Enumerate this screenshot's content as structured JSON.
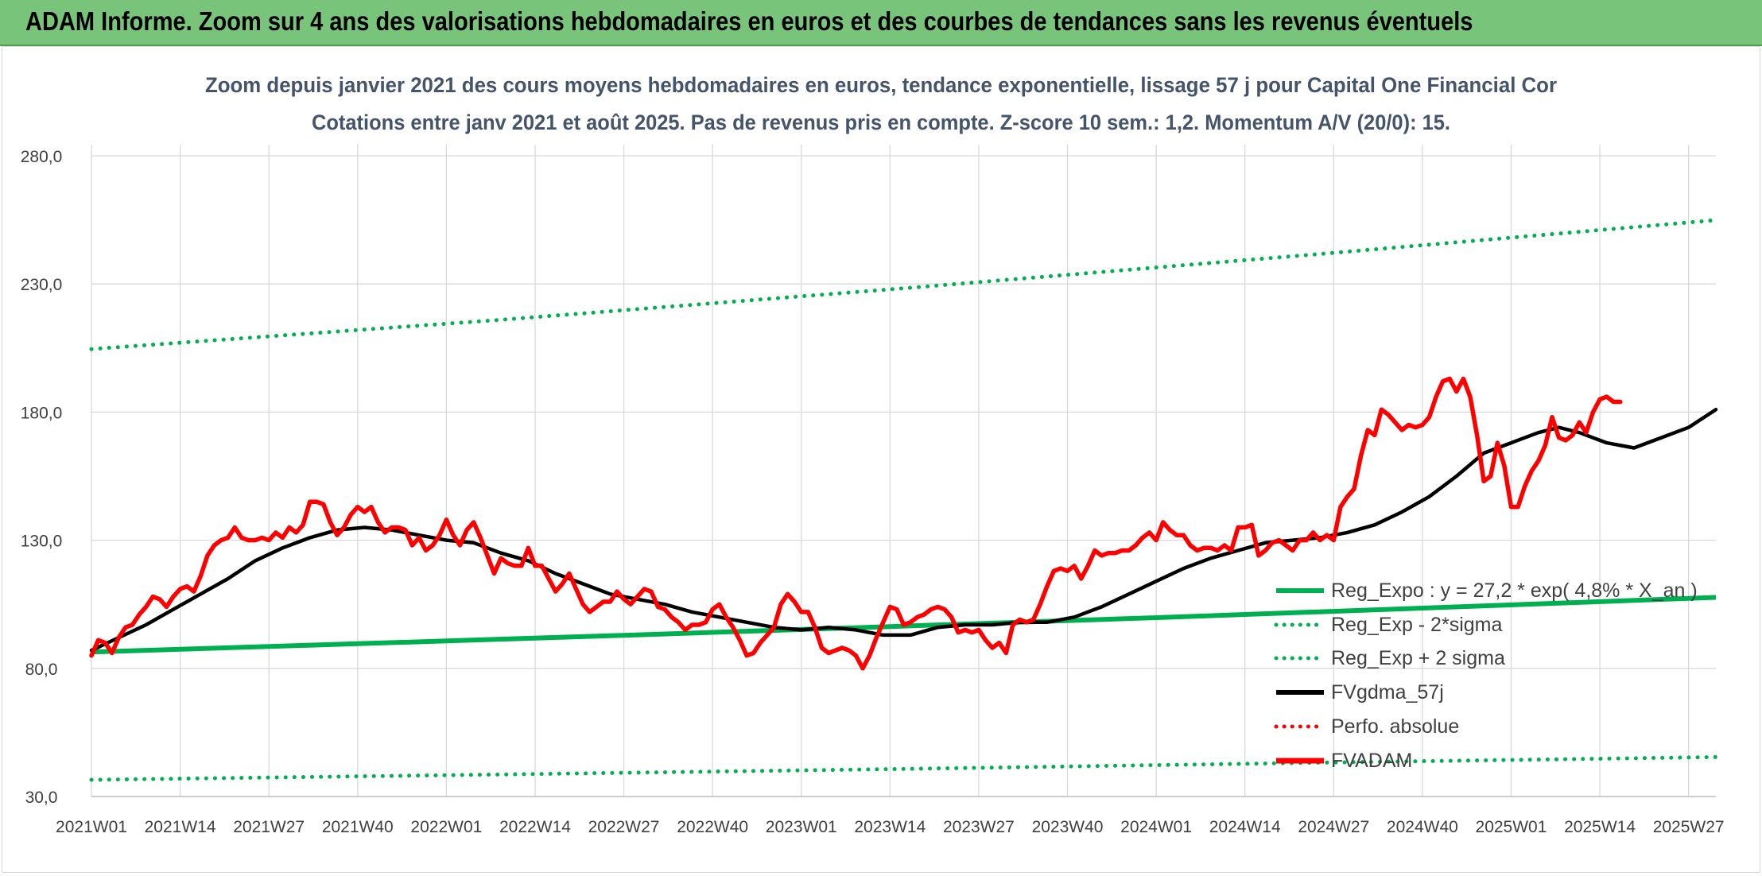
{
  "banner": {
    "title": "ADAM Informe. Zoom sur 4 ans des valorisations hebdomadaires en euros et des courbes de tendances sans les revenus éventuels"
  },
  "colors": {
    "banner": "#79c47b",
    "regression": "#00b050",
    "smoothing": "#000000",
    "price": "#ff0000",
    "perf": "#ff0000",
    "grid": "#d9d9d9",
    "axis_text": "#404040",
    "title_text": "#44546a"
  },
  "chart_data": {
    "type": "line",
    "title": "Zoom depuis janvier 2021 des cours moyens hebdomadaires en euros, tendance exponentielle, lissage 57 j pour Capital One Financial Cor",
    "subtitle": "Cotations entre janv 2021 et août 2025. Pas de revenus pris en compte. Z-score 10 sem.: 1,2. Momentum A/V (20/0): 15.",
    "xlabel": "",
    "ylabel": "",
    "ylim": [
      30,
      280
    ],
    "grid": true,
    "legend_position": "right",
    "x_tick_labels": [
      "2021W01",
      "2021W14",
      "2021W27",
      "2021W40",
      "2022W01",
      "2022W14",
      "2022W27",
      "2022W40",
      "2023W01",
      "2023W14",
      "2023W27",
      "2023W40",
      "2024W01",
      "2024W14",
      "2024W27",
      "2024W40",
      "2025W01",
      "2025W14",
      "2025W27"
    ],
    "y_tick_labels": [
      "30,0",
      "80,0",
      "130,0",
      "180,0",
      "230,0",
      "280,0"
    ],
    "y_ticks": [
      30,
      80,
      130,
      180,
      230,
      280
    ],
    "x_week_index": [
      0,
      13,
      26,
      39,
      52,
      65,
      78,
      91,
      104,
      117,
      130,
      143,
      156,
      169,
      182,
      195,
      208,
      221,
      234
    ],
    "series": [
      {
        "name": "Reg_Expo : y = 27,2 * exp( 4,8% *  X_an )",
        "style": "solid",
        "color": "#00b050",
        "points": [
          [
            0,
            86.4
          ],
          [
            39,
            89.6
          ],
          [
            78,
            92.9
          ],
          [
            117,
            96.3
          ],
          [
            156,
            99.8
          ],
          [
            195,
            103.5
          ],
          [
            238,
            107.7
          ]
        ]
      },
      {
        "name": "Reg_Exp - 2*sigma",
        "style": "dotted",
        "color": "#00b050",
        "points": [
          [
            0,
            36.5
          ],
          [
            60,
            38.6
          ],
          [
            120,
            40.8
          ],
          [
            180,
            43.2
          ],
          [
            238,
            45.4
          ]
        ]
      },
      {
        "name": "Reg_Exp + 2 sigma",
        "style": "dotted",
        "color": "#00b050",
        "points": [
          [
            0,
            204.6
          ],
          [
            60,
            216.0
          ],
          [
            120,
            228.5
          ],
          [
            180,
            241.7
          ],
          [
            238,
            254.9
          ]
        ]
      },
      {
        "name": "FVgdma_57j",
        "style": "solid",
        "color": "#000000",
        "points": [
          [
            0,
            87
          ],
          [
            4,
            92
          ],
          [
            8,
            97
          ],
          [
            12,
            103
          ],
          [
            16,
            109
          ],
          [
            20,
            115
          ],
          [
            24,
            122
          ],
          [
            28,
            127
          ],
          [
            32,
            131
          ],
          [
            36,
            134
          ],
          [
            40,
            135
          ],
          [
            44,
            134
          ],
          [
            48,
            132
          ],
          [
            52,
            130
          ],
          [
            56,
            129
          ],
          [
            60,
            125
          ],
          [
            64,
            122
          ],
          [
            68,
            117
          ],
          [
            72,
            113
          ],
          [
            76,
            109
          ],
          [
            80,
            107
          ],
          [
            84,
            105
          ],
          [
            88,
            102
          ],
          [
            92,
            100
          ],
          [
            96,
            98
          ],
          [
            100,
            96
          ],
          [
            104,
            95
          ],
          [
            108,
            96
          ],
          [
            112,
            95
          ],
          [
            116,
            93
          ],
          [
            120,
            93
          ],
          [
            124,
            96
          ],
          [
            128,
            97
          ],
          [
            132,
            97
          ],
          [
            136,
            98
          ],
          [
            140,
            98
          ],
          [
            144,
            100
          ],
          [
            148,
            104
          ],
          [
            152,
            109
          ],
          [
            156,
            114
          ],
          [
            160,
            119
          ],
          [
            164,
            123
          ],
          [
            168,
            126
          ],
          [
            172,
            129
          ],
          [
            176,
            130
          ],
          [
            180,
            131
          ],
          [
            184,
            133
          ],
          [
            188,
            136
          ],
          [
            192,
            141
          ],
          [
            196,
            147
          ],
          [
            200,
            155
          ],
          [
            204,
            164
          ],
          [
            208,
            168
          ],
          [
            212,
            172
          ],
          [
            215,
            174
          ],
          [
            218,
            172
          ],
          [
            222,
            168
          ],
          [
            226,
            166
          ],
          [
            230,
            170
          ],
          [
            234,
            174
          ],
          [
            238,
            181
          ]
        ]
      },
      {
        "name": "Perfo. absolue",
        "style": "dotted",
        "color": "#ff0000",
        "points": []
      },
      {
        "name": "FVADAM",
        "style": "solid",
        "color": "#ff0000",
        "points": [
          [
            0,
            85
          ],
          [
            1,
            91
          ],
          [
            2,
            90
          ],
          [
            3,
            86
          ],
          [
            4,
            92
          ],
          [
            5,
            96
          ],
          [
            6,
            97
          ],
          [
            7,
            101
          ],
          [
            8,
            104
          ],
          [
            9,
            108
          ],
          [
            10,
            107
          ],
          [
            11,
            104
          ],
          [
            12,
            108
          ],
          [
            13,
            111
          ],
          [
            14,
            112
          ],
          [
            15,
            110
          ],
          [
            16,
            116
          ],
          [
            17,
            124
          ],
          [
            18,
            128
          ],
          [
            19,
            130
          ],
          [
            20,
            131
          ],
          [
            21,
            135
          ],
          [
            22,
            131
          ],
          [
            23,
            130
          ],
          [
            24,
            130
          ],
          [
            25,
            131
          ],
          [
            26,
            130
          ],
          [
            27,
            133
          ],
          [
            28,
            131
          ],
          [
            29,
            135
          ],
          [
            30,
            133
          ],
          [
            31,
            136
          ],
          [
            32,
            145
          ],
          [
            33,
            145
          ],
          [
            34,
            144
          ],
          [
            35,
            137
          ],
          [
            36,
            132
          ],
          [
            37,
            135
          ],
          [
            38,
            140
          ],
          [
            39,
            143
          ],
          [
            40,
            141
          ],
          [
            41,
            143
          ],
          [
            42,
            137
          ],
          [
            43,
            133
          ],
          [
            44,
            135
          ],
          [
            45,
            135
          ],
          [
            46,
            134
          ],
          [
            47,
            128
          ],
          [
            48,
            131
          ],
          [
            49,
            126
          ],
          [
            50,
            128
          ],
          [
            51,
            132
          ],
          [
            52,
            138
          ],
          [
            53,
            132
          ],
          [
            54,
            128
          ],
          [
            55,
            134
          ],
          [
            56,
            137
          ],
          [
            57,
            131
          ],
          [
            58,
            124
          ],
          [
            59,
            117
          ],
          [
            60,
            123
          ],
          [
            61,
            121
          ],
          [
            62,
            120
          ],
          [
            63,
            120
          ],
          [
            64,
            127
          ],
          [
            65,
            120
          ],
          [
            66,
            120
          ],
          [
            67,
            115
          ],
          [
            68,
            110
          ],
          [
            69,
            113
          ],
          [
            70,
            117
          ],
          [
            71,
            111
          ],
          [
            72,
            105
          ],
          [
            73,
            102
          ],
          [
            74,
            104
          ],
          [
            75,
            106
          ],
          [
            76,
            106
          ],
          [
            77,
            110
          ],
          [
            78,
            107
          ],
          [
            79,
            105
          ],
          [
            80,
            108
          ],
          [
            81,
            111
          ],
          [
            82,
            110
          ],
          [
            83,
            104
          ],
          [
            84,
            103
          ],
          [
            85,
            100
          ],
          [
            86,
            98
          ],
          [
            87,
            95
          ],
          [
            88,
            97
          ],
          [
            89,
            97
          ],
          [
            90,
            98
          ],
          [
            91,
            103
          ],
          [
            92,
            105
          ],
          [
            93,
            100
          ],
          [
            94,
            96
          ],
          [
            95,
            91
          ],
          [
            96,
            85
          ],
          [
            97,
            86
          ],
          [
            98,
            90
          ],
          [
            99,
            93
          ],
          [
            100,
            96
          ],
          [
            101,
            105
          ],
          [
            102,
            109
          ],
          [
            103,
            106
          ],
          [
            104,
            102
          ],
          [
            105,
            102
          ],
          [
            106,
            96
          ],
          [
            107,
            88
          ],
          [
            108,
            86
          ],
          [
            109,
            87
          ],
          [
            110,
            88
          ],
          [
            111,
            87
          ],
          [
            112,
            85
          ],
          [
            113,
            80
          ],
          [
            114,
            85
          ],
          [
            115,
            92
          ],
          [
            116,
            98
          ],
          [
            117,
            104
          ],
          [
            118,
            103
          ],
          [
            119,
            97
          ],
          [
            120,
            98
          ],
          [
            121,
            100
          ],
          [
            122,
            101
          ],
          [
            123,
            103
          ],
          [
            124,
            104
          ],
          [
            125,
            103
          ],
          [
            126,
            100
          ],
          [
            127,
            94
          ],
          [
            128,
            95
          ],
          [
            129,
            94
          ],
          [
            130,
            95
          ],
          [
            131,
            91
          ],
          [
            132,
            88
          ],
          [
            133,
            90
          ],
          [
            134,
            86
          ],
          [
            135,
            97
          ],
          [
            136,
            99
          ],
          [
            137,
            98
          ],
          [
            138,
            99
          ],
          [
            139,
            105
          ],
          [
            140,
            112
          ],
          [
            141,
            118
          ],
          [
            142,
            119
          ],
          [
            143,
            118
          ],
          [
            144,
            120
          ],
          [
            145,
            115
          ],
          [
            146,
            120
          ],
          [
            147,
            126
          ],
          [
            148,
            124
          ],
          [
            149,
            125
          ],
          [
            150,
            125
          ],
          [
            151,
            126
          ],
          [
            152,
            126
          ],
          [
            153,
            128
          ],
          [
            154,
            131
          ],
          [
            155,
            133
          ],
          [
            156,
            130
          ],
          [
            157,
            137
          ],
          [
            158,
            134
          ],
          [
            159,
            132
          ],
          [
            160,
            132
          ],
          [
            161,
            128
          ],
          [
            162,
            126
          ],
          [
            163,
            127
          ],
          [
            164,
            127
          ],
          [
            165,
            126
          ],
          [
            166,
            128
          ],
          [
            167,
            126
          ],
          [
            168,
            135
          ],
          [
            169,
            135
          ],
          [
            170,
            136
          ],
          [
            171,
            124
          ],
          [
            172,
            126
          ],
          [
            173,
            129
          ],
          [
            174,
            130
          ],
          [
            175,
            128
          ],
          [
            176,
            126
          ],
          [
            177,
            130
          ],
          [
            178,
            130
          ],
          [
            179,
            133
          ],
          [
            180,
            130
          ],
          [
            181,
            132
          ],
          [
            182,
            130
          ],
          [
            183,
            143
          ],
          [
            184,
            147
          ],
          [
            185,
            150
          ],
          [
            186,
            163
          ],
          [
            187,
            173
          ],
          [
            188,
            171
          ],
          [
            189,
            181
          ],
          [
            190,
            179
          ],
          [
            191,
            176
          ],
          [
            192,
            173
          ],
          [
            193,
            175
          ],
          [
            194,
            174
          ],
          [
            195,
            175
          ],
          [
            196,
            178
          ],
          [
            197,
            186
          ],
          [
            198,
            192
          ],
          [
            199,
            193
          ],
          [
            200,
            188
          ],
          [
            201,
            193
          ],
          [
            202,
            186
          ],
          [
            203,
            171
          ],
          [
            204,
            153
          ],
          [
            205,
            155
          ],
          [
            206,
            168
          ],
          [
            207,
            159
          ],
          [
            208,
            143
          ],
          [
            209,
            143
          ],
          [
            210,
            151
          ],
          [
            211,
            157
          ],
          [
            212,
            161
          ],
          [
            213,
            167
          ],
          [
            214,
            178
          ],
          [
            215,
            170
          ],
          [
            216,
            169
          ],
          [
            217,
            171
          ],
          [
            218,
            176
          ],
          [
            219,
            172
          ],
          [
            220,
            180
          ],
          [
            221,
            185
          ],
          [
            222,
            186
          ],
          [
            223,
            184
          ],
          [
            224,
            184
          ]
        ]
      }
    ]
  }
}
